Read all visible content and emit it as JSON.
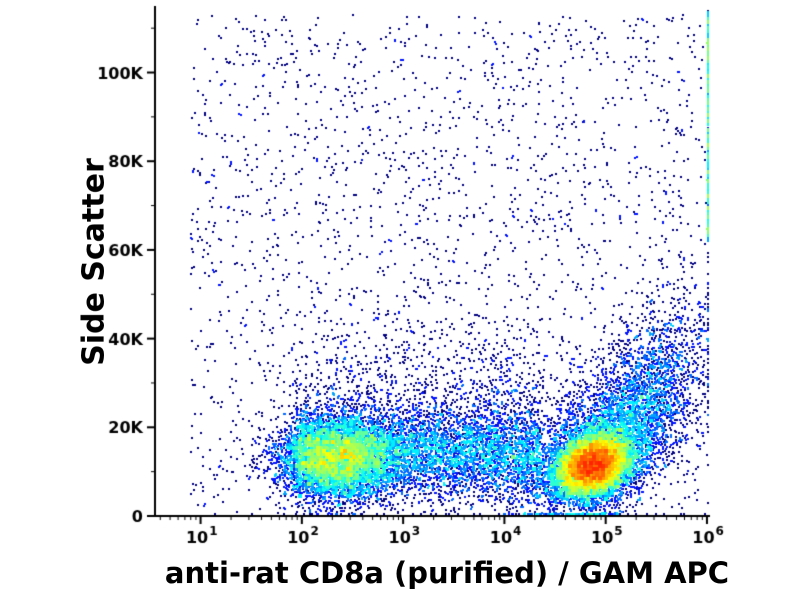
{
  "chart_data": {
    "type": "scatter",
    "subtype": "flow-cytometry-pseudocolor-density-dot-plot",
    "title": "",
    "xlabel": "anti-rat CD8a (purified) / GAM APC",
    "ylabel": "Side Scatter",
    "x_scale": "log10",
    "x_range_log10": [
      0.55,
      6.03
    ],
    "y_range": [
      0,
      115000
    ],
    "x_major_ticks": [
      {
        "log10": 1,
        "base": "10",
        "exp": "1"
      },
      {
        "log10": 2,
        "base": "10",
        "exp": "2"
      },
      {
        "log10": 3,
        "base": "10",
        "exp": "3"
      },
      {
        "log10": 4,
        "base": "10",
        "exp": "4"
      },
      {
        "log10": 5,
        "base": "10",
        "exp": "5"
      },
      {
        "log10": 6,
        "base": "10",
        "exp": "6"
      }
    ],
    "y_major_ticks": [
      {
        "value": 0,
        "label": "0"
      },
      {
        "value": 20000,
        "label": "20K"
      },
      {
        "value": 40000,
        "label": "40K"
      },
      {
        "value": 60000,
        "label": "60K"
      },
      {
        "value": 80000,
        "label": "80K"
      },
      {
        "value": 100000,
        "label": "100K"
      }
    ],
    "y_minor_step": 10000,
    "grid": false,
    "legend": "none",
    "axis_color": "#000000",
    "background": "#ffffff",
    "colormap": "jet",
    "point_size": 2,
    "seed": 1337,
    "populations": [
      {
        "name": "cd8a-negative-dense",
        "type": "gauss2d",
        "n": 5200,
        "x_log_mean": 2.35,
        "x_log_sd": 0.3,
        "y_mean": 13000,
        "y_sd": 4300,
        "corr": 0
      },
      {
        "name": "cd8a-negative-band",
        "type": "band",
        "n": 5200,
        "x_log_min": 1.95,
        "x_log_max": 4.35,
        "y_mean": 14000,
        "y_sd": 5200
      },
      {
        "name": "mid-haze-above-band",
        "type": "band",
        "n": 900,
        "x_log_min": 1.9,
        "x_log_max": 4.4,
        "y_mean": 27000,
        "y_sd": 9000
      },
      {
        "name": "cd8a-positive-main",
        "type": "gauss2d",
        "n": 9500,
        "x_log_mean": 4.87,
        "x_log_sd": 0.18,
        "y_mean": 11500,
        "y_sd": 3400,
        "corr": 0.25
      },
      {
        "name": "cd8a-positive-halo",
        "type": "gauss2d",
        "n": 3200,
        "x_log_mean": 4.95,
        "x_log_sd": 0.36,
        "y_mean": 16000,
        "y_sd": 8500,
        "corr": 0.45
      },
      {
        "name": "cd8a-positive-tail-up",
        "type": "gauss2d",
        "n": 1600,
        "x_log_mean": 5.42,
        "x_log_sd": 0.3,
        "y_mean": 27000,
        "y_sd": 11500,
        "corr": 0.55
      },
      {
        "name": "background-sparse",
        "type": "uniform",
        "n": 2300,
        "x_log_min": 0.9,
        "x_log_max": 6.02,
        "y_min": 0,
        "y_max": 113000
      },
      {
        "name": "right-edge-pileup",
        "type": "edge-right",
        "n": 650,
        "x_log": 6.02,
        "y_min": 62000,
        "y_max": 114000
      }
    ]
  }
}
